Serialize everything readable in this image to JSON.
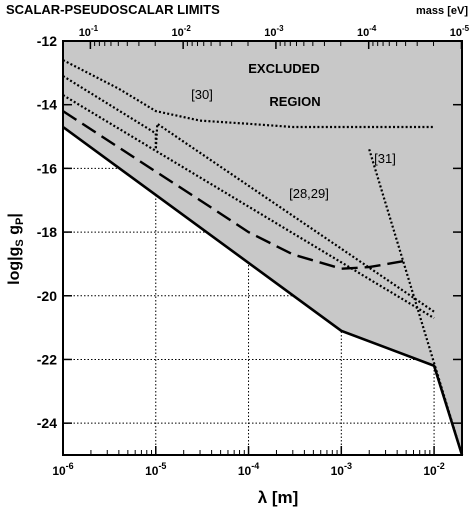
{
  "chart_data": {
    "type": "line",
    "title": "SCALAR-PSEUDOSCALAR LIMITS",
    "top_axis_label": "mass [eV]",
    "top_ticks": [
      {
        "base": "10",
        "exp": "-1"
      },
      {
        "base": "10",
        "exp": "-2"
      },
      {
        "base": "10",
        "exp": "-3"
      },
      {
        "base": "10",
        "exp": "-4"
      },
      {
        "base": "10",
        "exp": "-5"
      }
    ],
    "xlabel": "λ  [m]",
    "ylabel": "log|g",
    "ylabel_sub1": "S",
    "ylabel_mid": " g",
    "ylabel_sub2": "P",
    "ylabel_end": "|",
    "x_scale": "log",
    "xlim": [
      1e-06,
      0.02
    ],
    "ylim": [
      -25,
      -12
    ],
    "x_ticks": [
      {
        "base": "10",
        "exp": "-6"
      },
      {
        "base": "10",
        "exp": "-5"
      },
      {
        "base": "10",
        "exp": "-4"
      },
      {
        "base": "10",
        "exp": "-3"
      },
      {
        "base": "10",
        "exp": "-2"
      }
    ],
    "y_ticks": [
      "-12",
      "-14",
      "-16",
      "-18",
      "-20",
      "-22",
      "-24"
    ],
    "grid": "dotted, in unshaded region",
    "region_label_1": "EXCLUDED",
    "region_label_2": "REGION",
    "annotations": [
      "[30]",
      "[28,29]",
      "[31]"
    ],
    "series": [
      {
        "style": "solid",
        "x": [
          1e-06,
          0.001,
          0.01,
          0.02
        ],
        "y": [
          -14.7,
          -21.1,
          -22.2,
          -25
        ]
      },
      {
        "style": "dashed",
        "x": [
          1e-06,
          1e-05,
          3e-05,
          0.0001,
          0.0003,
          0.001,
          0.002,
          0.005
        ],
        "y": [
          -14.2,
          -16.1,
          -17.0,
          -18.0,
          -18.7,
          -19.15,
          -19.1,
          -18.9
        ]
      },
      {
        "style": "dotted",
        "x": [
          1e-06,
          4e-06,
          1e-05,
          3e-05,
          0.0001,
          0.0003,
          0.001,
          0.002,
          0.01
        ],
        "y": [
          -12.6,
          -13.5,
          -14.2,
          -14.5,
          -14.6,
          -14.7,
          -14.7,
          -14.7,
          -14.7
        ]
      },
      {
        "style": "dotted",
        "x": [
          1e-06,
          1e-05,
          1e-05,
          1.04e-05,
          0.01
        ],
        "y": [
          -13.1,
          -14.9,
          -15.4,
          -14.6,
          -20.5
        ]
      },
      {
        "style": "dotted",
        "x": [
          1e-06,
          0.01
        ],
        "y": [
          -13.7,
          -20.7
        ]
      },
      {
        "style": "dotted",
        "x": [
          0.002,
          0.02
        ],
        "y": [
          -15.4,
          -25
        ]
      }
    ]
  }
}
